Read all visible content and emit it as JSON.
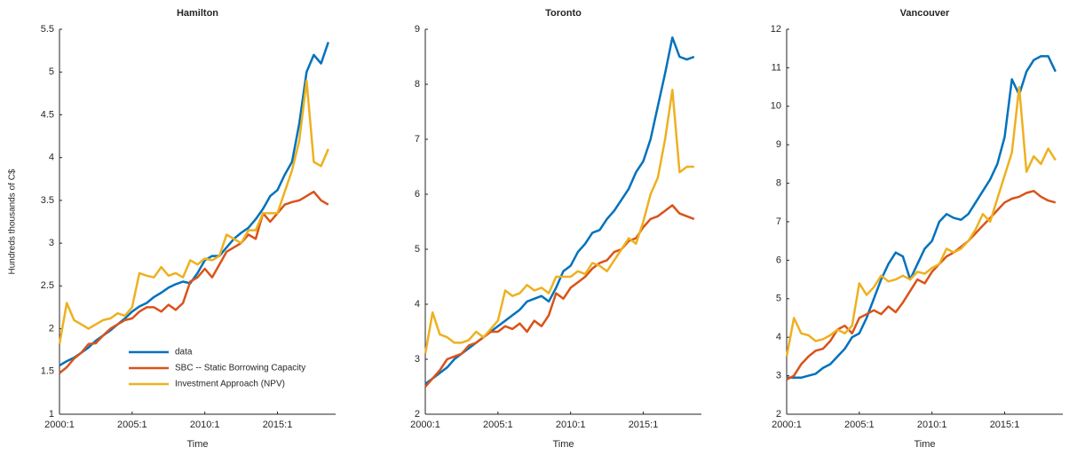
{
  "chart_data": [
    {
      "type": "line",
      "title": "Hamilton",
      "xlabel": "Time",
      "ylabel": "Hundreds thousands of C$",
      "x": [
        2000,
        2000.5,
        2001,
        2001.5,
        2002,
        2002.5,
        2003,
        2003.5,
        2004,
        2004.5,
        2005,
        2005.5,
        2006,
        2006.5,
        2007,
        2007.5,
        2008,
        2008.5,
        2009,
        2009.5,
        2010,
        2010.5,
        2011,
        2011.5,
        2012,
        2012.5,
        2013,
        2013.5,
        2014,
        2014.5,
        2015,
        2015.5,
        2016,
        2016.5,
        2017,
        2017.5,
        2018,
        2018.5
      ],
      "xlim": [
        2000,
        2019
      ],
      "xticks": [
        {
          "value": 2000,
          "label": "2000:1"
        },
        {
          "value": 2005,
          "label": "2005:1"
        },
        {
          "value": 2010,
          "label": "2010:1"
        },
        {
          "value": 2015,
          "label": "2015:1"
        }
      ],
      "ylim": [
        1,
        5.5
      ],
      "yticks": [
        1,
        1.5,
        2,
        2.5,
        3,
        3.5,
        4,
        4.5,
        5,
        5.5
      ],
      "legend": "lower-right",
      "series": [
        {
          "name": "data",
          "color": "#0072bd",
          "values": [
            1.57,
            1.62,
            1.66,
            1.72,
            1.78,
            1.86,
            1.92,
            1.98,
            2.05,
            2.12,
            2.2,
            2.26,
            2.3,
            2.37,
            2.42,
            2.48,
            2.52,
            2.55,
            2.53,
            2.65,
            2.8,
            2.85,
            2.85,
            2.95,
            3.05,
            3.12,
            3.18,
            3.28,
            3.4,
            3.55,
            3.62,
            3.8,
            3.95,
            4.4,
            5.0,
            5.2,
            5.1,
            5.35
          ]
        },
        {
          "name": "SBC -- Static Borrowing Capacity",
          "color": "#d95319",
          "values": [
            1.48,
            1.55,
            1.65,
            1.72,
            1.82,
            1.83,
            1.92,
            2.0,
            2.05,
            2.1,
            2.12,
            2.2,
            2.25,
            2.25,
            2.2,
            2.28,
            2.22,
            2.3,
            2.55,
            2.6,
            2.7,
            2.6,
            2.75,
            2.9,
            2.95,
            3.0,
            3.1,
            3.05,
            3.35,
            3.25,
            3.35,
            3.45,
            3.48,
            3.5,
            3.55,
            3.6,
            3.5,
            3.45
          ]
        },
        {
          "name": "Investment Approach (NPV)",
          "color": "#edb120",
          "values": [
            1.82,
            2.3,
            2.1,
            2.05,
            2.0,
            2.05,
            2.1,
            2.12,
            2.18,
            2.15,
            2.25,
            2.65,
            2.62,
            2.6,
            2.72,
            2.62,
            2.65,
            2.6,
            2.8,
            2.75,
            2.82,
            2.8,
            2.85,
            3.1,
            3.05,
            3.0,
            3.15,
            3.15,
            3.35,
            3.35,
            3.35,
            3.6,
            3.85,
            4.2,
            4.9,
            3.95,
            3.9,
            4.1
          ]
        }
      ]
    },
    {
      "type": "line",
      "title": "Toronto",
      "xlabel": "Time",
      "x": [
        2000,
        2000.5,
        2001,
        2001.5,
        2002,
        2002.5,
        2003,
        2003.5,
        2004,
        2004.5,
        2005,
        2005.5,
        2006,
        2006.5,
        2007,
        2007.5,
        2008,
        2008.5,
        2009,
        2009.5,
        2010,
        2010.5,
        2011,
        2011.5,
        2012,
        2012.5,
        2013,
        2013.5,
        2014,
        2014.5,
        2015,
        2015.5,
        2016,
        2016.5,
        2017,
        2017.5,
        2018,
        2018.5
      ],
      "xlim": [
        2000,
        2019
      ],
      "xticks": [
        {
          "value": 2000,
          "label": "2000:1"
        },
        {
          "value": 2005,
          "label": "2005:1"
        },
        {
          "value": 2010,
          "label": "2010:1"
        },
        {
          "value": 2015,
          "label": "2015:1"
        }
      ],
      "ylim": [
        2,
        9
      ],
      "yticks": [
        2,
        3,
        4,
        5,
        6,
        7,
        8,
        9
      ],
      "series": [
        {
          "color": "#0072bd",
          "values": [
            2.55,
            2.65,
            2.75,
            2.85,
            3.0,
            3.1,
            3.2,
            3.3,
            3.4,
            3.5,
            3.6,
            3.7,
            3.8,
            3.9,
            4.05,
            4.1,
            4.15,
            4.05,
            4.3,
            4.6,
            4.7,
            4.95,
            5.1,
            5.3,
            5.35,
            5.55,
            5.7,
            5.9,
            6.1,
            6.4,
            6.6,
            7.0,
            7.6,
            8.2,
            8.85,
            8.5,
            8.45,
            8.5
          ]
        },
        {
          "color": "#d95319",
          "values": [
            2.5,
            2.65,
            2.8,
            3.0,
            3.05,
            3.1,
            3.25,
            3.3,
            3.4,
            3.5,
            3.5,
            3.6,
            3.55,
            3.65,
            3.5,
            3.7,
            3.6,
            3.8,
            4.2,
            4.1,
            4.3,
            4.4,
            4.5,
            4.65,
            4.75,
            4.8,
            4.95,
            5.0,
            5.15,
            5.2,
            5.4,
            5.55,
            5.6,
            5.7,
            5.8,
            5.65,
            5.6,
            5.55
          ]
        },
        {
          "color": "#edb120",
          "values": [
            3.1,
            3.85,
            3.45,
            3.4,
            3.3,
            3.3,
            3.35,
            3.5,
            3.4,
            3.55,
            3.7,
            4.25,
            4.15,
            4.2,
            4.35,
            4.25,
            4.3,
            4.2,
            4.5,
            4.5,
            4.5,
            4.6,
            4.55,
            4.75,
            4.7,
            4.6,
            4.8,
            5.0,
            5.2,
            5.1,
            5.5,
            6.0,
            6.3,
            7.0,
            7.9,
            6.4,
            6.5,
            6.5
          ]
        }
      ]
    },
    {
      "type": "line",
      "title": "Vancouver",
      "xlabel": "Time",
      "x": [
        2000,
        2000.5,
        2001,
        2001.5,
        2002,
        2002.5,
        2003,
        2003.5,
        2004,
        2004.5,
        2005,
        2005.5,
        2006,
        2006.5,
        2007,
        2007.5,
        2008,
        2008.5,
        2009,
        2009.5,
        2010,
        2010.5,
        2011,
        2011.5,
        2012,
        2012.5,
        2013,
        2013.5,
        2014,
        2014.5,
        2015,
        2015.5,
        2016,
        2016.5,
        2017,
        2017.5,
        2018,
        2018.5
      ],
      "xlim": [
        2000,
        2019
      ],
      "xticks": [
        {
          "value": 2000,
          "label": "2000:1"
        },
        {
          "value": 2005,
          "label": "2005:1"
        },
        {
          "value": 2010,
          "label": "2010:1"
        },
        {
          "value": 2015,
          "label": "2015:1"
        }
      ],
      "ylim": [
        2,
        12
      ],
      "yticks": [
        2,
        3,
        4,
        5,
        6,
        7,
        8,
        9,
        10,
        11,
        12
      ],
      "series": [
        {
          "color": "#0072bd",
          "values": [
            2.95,
            2.95,
            2.95,
            3.0,
            3.05,
            3.2,
            3.3,
            3.5,
            3.7,
            4.0,
            4.1,
            4.5,
            5.0,
            5.5,
            5.9,
            6.2,
            6.1,
            5.5,
            5.9,
            6.3,
            6.5,
            7.0,
            7.2,
            7.1,
            7.05,
            7.2,
            7.5,
            7.8,
            8.1,
            8.5,
            9.2,
            10.7,
            10.3,
            10.9,
            11.2,
            11.3,
            11.3,
            10.9
          ]
        },
        {
          "color": "#d95319",
          "values": [
            2.9,
            3.0,
            3.3,
            3.5,
            3.65,
            3.7,
            3.9,
            4.2,
            4.3,
            4.1,
            4.5,
            4.6,
            4.7,
            4.6,
            4.8,
            4.65,
            4.9,
            5.2,
            5.5,
            5.4,
            5.7,
            5.9,
            6.1,
            6.2,
            6.35,
            6.5,
            6.7,
            6.9,
            7.1,
            7.3,
            7.5,
            7.6,
            7.65,
            7.75,
            7.8,
            7.65,
            7.55,
            7.5
          ]
        },
        {
          "color": "#edb120",
          "values": [
            3.5,
            4.5,
            4.1,
            4.05,
            3.9,
            3.95,
            4.05,
            4.2,
            4.1,
            4.3,
            5.4,
            5.1,
            5.3,
            5.6,
            5.45,
            5.5,
            5.6,
            5.5,
            5.7,
            5.65,
            5.8,
            5.9,
            6.3,
            6.2,
            6.3,
            6.5,
            6.8,
            7.2,
            7.0,
            7.6,
            8.2,
            8.8,
            10.5,
            8.3,
            8.7,
            8.5,
            8.9,
            8.6
          ]
        }
      ]
    }
  ]
}
